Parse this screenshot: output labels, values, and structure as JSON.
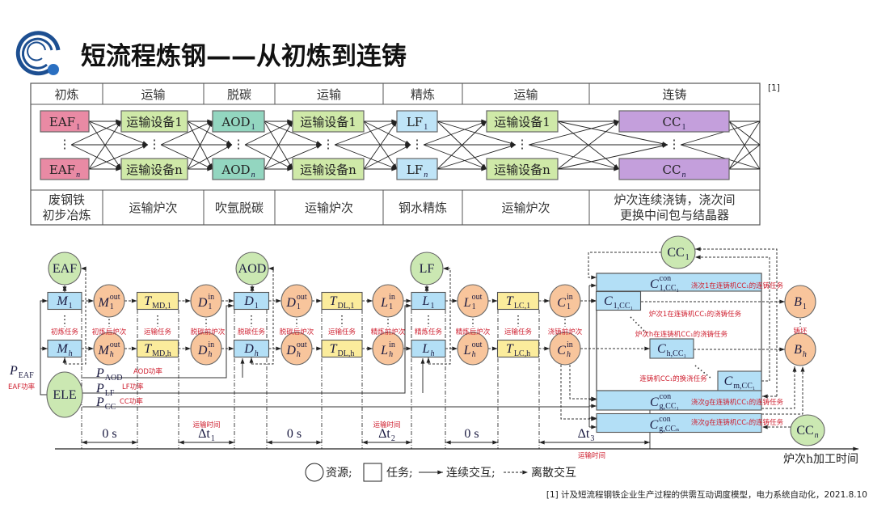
{
  "slide": {
    "title": "短流程炼钢——从初炼到连铸",
    "ref_marker": "[1]",
    "citation": "[1] 计及短流程钢铁企业生产过程的供需互动调度模型，电力系统自动化，2021.8.10",
    "logo_color": "#1d4f91"
  },
  "process_table": {
    "columns": [
      {
        "header": "初炼",
        "top": {
          "main": "EAF",
          "sub": "1"
        },
        "bottom": {
          "main": "EAF",
          "sub": "n"
        },
        "desc": [
          "废钢铁",
          "初步冶炼"
        ],
        "color": "#e98aa4"
      },
      {
        "header": "运输",
        "top": {
          "main": "运输设备1"
        },
        "bottom": {
          "main": "运输设备n"
        },
        "desc": [
          "运输炉次"
        ],
        "color": "#cfe9a8"
      },
      {
        "header": "脱碳",
        "top": {
          "main": "AOD",
          "sub": "1"
        },
        "bottom": {
          "main": "AOD",
          "sub": "n"
        },
        "desc": [
          "吹氩脱碳"
        ],
        "color": "#93d6c0"
      },
      {
        "header": "运输",
        "top": {
          "main": "运输设备1"
        },
        "bottom": {
          "main": "运输设备n"
        },
        "desc": [
          "运输炉次"
        ],
        "color": "#cfe9a8"
      },
      {
        "header": "精炼",
        "top": {
          "main": "LF",
          "sub": "1"
        },
        "bottom": {
          "main": "LF",
          "sub": "n"
        },
        "desc": [
          "钢水精炼"
        ],
        "color": "#bfe4f7"
      },
      {
        "header": "运输",
        "top": {
          "main": "运输设备1"
        },
        "bottom": {
          "main": "运输设备n"
        },
        "desc": [
          "运输炉次"
        ],
        "color": "#cfe9a8"
      },
      {
        "header": "连铸",
        "top": {
          "main": "CC",
          "sub": "1"
        },
        "bottom": {
          "main": "CC",
          "sub": "n"
        },
        "desc": [
          "炉次连续浇铸，浇次间",
          "更换中间包与结晶器"
        ],
        "color": "#c49fdc"
      }
    ]
  },
  "diagram": {
    "colors": {
      "resource": "#cbe8b2",
      "heat": "#f8c59c",
      "transport": "#fbec9c",
      "process": "#b3dff6",
      "annotation": "#cf2030"
    },
    "nodes": {
      "EAF": {
        "type": "resource",
        "main": "EAF"
      },
      "AOD": {
        "type": "resource",
        "main": "AOD"
      },
      "LF": {
        "type": "resource",
        "main": "LF"
      },
      "CC1": {
        "type": "resource",
        "main": "CC",
        "sub": "1"
      },
      "CCn": {
        "type": "resource",
        "main": "CC",
        "sub": "n"
      },
      "ELE": {
        "type": "resource",
        "main": "ELE"
      },
      "M1": {
        "type": "process",
        "main": "M",
        "sub": "1"
      },
      "Mh": {
        "type": "process",
        "main": "M",
        "sub": "h"
      },
      "M1out": {
        "type": "heat",
        "main": "M",
        "sup": "out",
        "sub": "1"
      },
      "Mhout": {
        "type": "heat",
        "main": "M",
        "sup": "out",
        "sub": "h"
      },
      "TMD1": {
        "type": "transport",
        "main": "T",
        "sub": "MD,1"
      },
      "TMDh": {
        "type": "transport",
        "main": "T",
        "sub": "MD,h"
      },
      "D1in": {
        "type": "heat",
        "main": "D",
        "sup": "in",
        "sub": "1"
      },
      "Dhin": {
        "type": "heat",
        "main": "D",
        "sup": "in",
        "sub": "h"
      },
      "D1": {
        "type": "process",
        "main": "D",
        "sub": "1"
      },
      "Dh": {
        "type": "process",
        "main": "D",
        "sub": "h"
      },
      "D1out": {
        "type": "heat",
        "main": "D",
        "sup": "out",
        "sub": "1"
      },
      "Dhout": {
        "type": "heat",
        "main": "D",
        "sup": "out",
        "sub": "h"
      },
      "TDL1": {
        "type": "transport",
        "main": "T",
        "sub": "DL,1"
      },
      "TDLh": {
        "type": "transport",
        "main": "T",
        "sub": "DL,h"
      },
      "L1in": {
        "type": "heat",
        "main": "L",
        "sup": "in",
        "sub": "1"
      },
      "Lhin": {
        "type": "heat",
        "main": "L",
        "sup": "in",
        "sub": "h"
      },
      "L1": {
        "type": "process",
        "main": "L",
        "sub": "1"
      },
      "Lh": {
        "type": "process",
        "main": "L",
        "sub": "h"
      },
      "L1out": {
        "type": "heat",
        "main": "L",
        "sup": "out",
        "sub": "1"
      },
      "Lhout": {
        "type": "heat",
        "main": "L",
        "sup": "out",
        "sub": "h"
      },
      "TLC1": {
        "type": "transport",
        "main": "T",
        "sub": "LC,1"
      },
      "TLCh": {
        "type": "transport",
        "main": "T",
        "sub": "LC,h"
      },
      "C1in": {
        "type": "heat",
        "main": "C",
        "sup": "in",
        "sub": "1"
      },
      "Chin": {
        "type": "heat",
        "main": "C",
        "sup": "in",
        "sub": "h"
      },
      "C1con": {
        "type": "process",
        "main": "C",
        "sup": "con",
        "sub": "1,CC₁"
      },
      "C1CC": {
        "type": "process",
        "main": "C",
        "sub": "1,CC₁"
      },
      "ChCC": {
        "type": "process",
        "main": "C",
        "sub": "h,CC₁"
      },
      "CmCC": {
        "type": "process",
        "main": "C",
        "sub": "m,CC₁"
      },
      "CgCC1": {
        "type": "process",
        "main": "C",
        "sup": "con",
        "sub": "g,CC₁"
      },
      "CgCCn": {
        "type": "process",
        "main": "C",
        "sup": "con",
        "sub": "g,CCₙ"
      },
      "B1": {
        "type": "heat",
        "main": "B",
        "sub": "1"
      },
      "Bh": {
        "type": "heat",
        "main": "B",
        "sub": "h"
      }
    },
    "annotations": {
      "m_task": "初炼任务",
      "m_out": "初炼后炉次",
      "t_md": "运输任务",
      "d_in": "脱碳前炉次",
      "d_task": "脱碳任务",
      "d_out": "脱碳后炉次",
      "t_dl": "运输任务",
      "l_in": "精炼前炉次",
      "l_task": "精炼任务",
      "l_out": "精炼后炉次",
      "t_lc": "运输任务",
      "c_in": "浇铸前炉次",
      "c1con": "浇次1在连铸机CC₁的连铸任务",
      "c1cc": "炉次1在连铸机CC₁的浇铸任务",
      "chcc": "炉次h在连铸机CC₁的浇铸任务",
      "cmcc": "连铸机CC₁的换浇任务",
      "cgcc1": "浇次g在连铸机CC₁的连铸任务",
      "cgccn": "浇次g在连铸机CCₙ的连铸任务",
      "billet": "铸坯"
    },
    "power": {
      "EAF": {
        "main": "P",
        "sub": "EAF",
        "note": "EAF功率"
      },
      "AOD": {
        "main": "P",
        "sub": "AOD",
        "note": "AOD功率"
      },
      "LF": {
        "main": "P",
        "sub": "LF",
        "note": "LF功率"
      },
      "CC": {
        "main": "P",
        "sub": "CC",
        "note": "CC功率"
      }
    },
    "intervals": [
      {
        "main": "0 s"
      },
      {
        "main": "Δt",
        "sub": "1",
        "note": "运输时间"
      },
      {
        "main": "0 s"
      },
      {
        "main": "Δt",
        "sub": "2",
        "note": "运输时间"
      },
      {
        "main": "0 s"
      },
      {
        "main": "Δt",
        "sub": "3",
        "note": "运输时间"
      }
    ],
    "axis_label": "炉次h加工时间",
    "legend": {
      "resource": "资源;",
      "task": "任务;",
      "continuous": "连续交互;",
      "discrete": "离散交互"
    }
  }
}
